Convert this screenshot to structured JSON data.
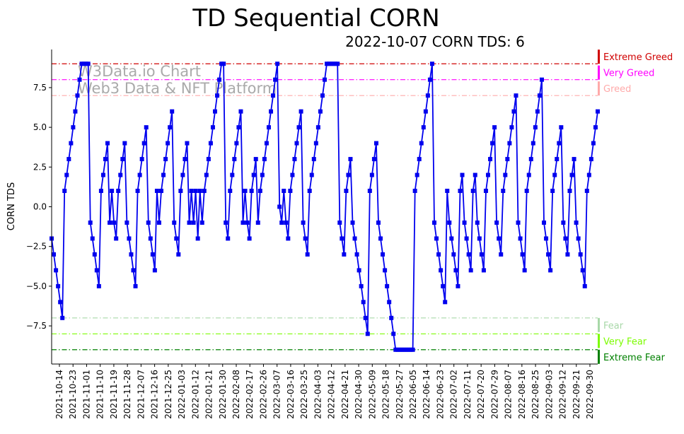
{
  "chart_data": {
    "type": "line",
    "title": "TD Sequential CORN",
    "subtitle": "2022-10-07 CORN TDS: 6",
    "ylabel": "CORN TDS",
    "xlabel": "",
    "ylim": [
      -9.9,
      9.9
    ],
    "yticks": [
      -7.5,
      -5.0,
      -2.5,
      0.0,
      2.5,
      5.0,
      7.5
    ],
    "ytick_labels": [
      "−7.5",
      "−5.0",
      "−2.5",
      "0.0",
      "2.5",
      "5.0",
      "7.5"
    ],
    "xtick_labels": [
      "2021-10-14",
      "2021-10-23",
      "2021-11-01",
      "2021-11-10",
      "2021-11-19",
      "2021-11-28",
      "2021-12-07",
      "2021-12-16",
      "2021-12-25",
      "2022-01-03",
      "2022-01-12",
      "2022-01-21",
      "2022-01-30",
      "2022-02-08",
      "2022-02-17",
      "2022-02-26",
      "2022-03-07",
      "2022-03-16",
      "2022-03-25",
      "2022-04-03",
      "2022-04-12",
      "2022-04-21",
      "2022-04-30",
      "2022-05-09",
      "2022-05-18",
      "2022-05-27",
      "2022-06-05",
      "2022-06-14",
      "2022-06-23",
      "2022-07-02",
      "2022-07-11",
      "2022-07-20",
      "2022-07-29",
      "2022-08-07",
      "2022-08-16",
      "2022-08-25",
      "2022-09-03",
      "2022-09-12",
      "2022-09-21",
      "2022-09-30"
    ],
    "watermark": [
      "W3Data.io Chart",
      "Web3 Data & NFT Platform"
    ],
    "series": [
      {
        "name": "CORN TDS",
        "color": "#0000ee",
        "values": [
          -2,
          -3,
          -4,
          -5,
          -6,
          -7,
          1,
          2,
          3,
          4,
          5,
          6,
          7,
          8,
          9,
          9,
          9,
          9,
          -1,
          -2,
          -3,
          -4,
          -5,
          1,
          2,
          3,
          4,
          -1,
          1,
          -1,
          -2,
          1,
          2,
          3,
          4,
          -1,
          -2,
          -3,
          -4,
          -5,
          1,
          2,
          3,
          4,
          5,
          -1,
          -2,
          -3,
          -4,
          1,
          -1,
          1,
          2,
          3,
          4,
          5,
          6,
          -1,
          -2,
          -3,
          1,
          2,
          3,
          4,
          -1,
          1,
          -1,
          1,
          -2,
          1,
          -1,
          1,
          2,
          3,
          4,
          5,
          6,
          7,
          8,
          9,
          9,
          -1,
          -2,
          1,
          2,
          3,
          4,
          5,
          6,
          -1,
          1,
          -1,
          -2,
          1,
          2,
          3,
          -1,
          1,
          2,
          3,
          4,
          5,
          6,
          7,
          8,
          9,
          0,
          -1,
          1,
          -1,
          -2,
          1,
          2,
          3,
          4,
          5,
          6,
          -1,
          -2,
          -3,
          1,
          2,
          3,
          4,
          5,
          6,
          7,
          8,
          9,
          9,
          9,
          9,
          9,
          9,
          -1,
          -2,
          -3,
          1,
          2,
          3,
          -1,
          -2,
          -3,
          -4,
          -5,
          -6,
          -7,
          -8,
          1,
          2,
          3,
          4,
          -1,
          -2,
          -3,
          -4,
          -5,
          -6,
          -7,
          -8,
          -9,
          -9,
          -9,
          -9,
          -9,
          -9,
          -9,
          -9,
          -9,
          1,
          2,
          3,
          4,
          5,
          6,
          7,
          8,
          9,
          -1,
          -2,
          -3,
          -4,
          -5,
          -6,
          1,
          -1,
          -2,
          -3,
          -4,
          -5,
          1,
          2,
          -1,
          -2,
          -3,
          -4,
          1,
          2,
          -1,
          -2,
          -3,
          -4,
          1,
          2,
          3,
          4,
          5,
          -1,
          -2,
          -3,
          1,
          2,
          3,
          4,
          5,
          6,
          7,
          -1,
          -2,
          -3,
          -4,
          1,
          2,
          3,
          4,
          5,
          6,
          7,
          8,
          -1,
          -2,
          -3,
          -4,
          1,
          2,
          3,
          4,
          5,
          -1,
          -2,
          -3,
          1,
          2,
          3,
          -1,
          -2,
          -3,
          -4,
          -5,
          1,
          2,
          3,
          4,
          5,
          6
        ]
      }
    ],
    "levels": [
      {
        "name": "Extreme Greed",
        "value": 9,
        "color": "#d00000"
      },
      {
        "name": "Very Greed",
        "value": 8,
        "color": "#ff00ff"
      },
      {
        "name": "Greed",
        "value": 7,
        "color": "#ffaaaa"
      },
      {
        "name": "Fear",
        "value": -7,
        "color": "#a8d8a8"
      },
      {
        "name": "Very Fear",
        "value": -8,
        "color": "#7cfc00"
      },
      {
        "name": "Extreme Fear",
        "value": -9,
        "color": "#008000"
      }
    ],
    "grid": false,
    "legend": "right"
  }
}
